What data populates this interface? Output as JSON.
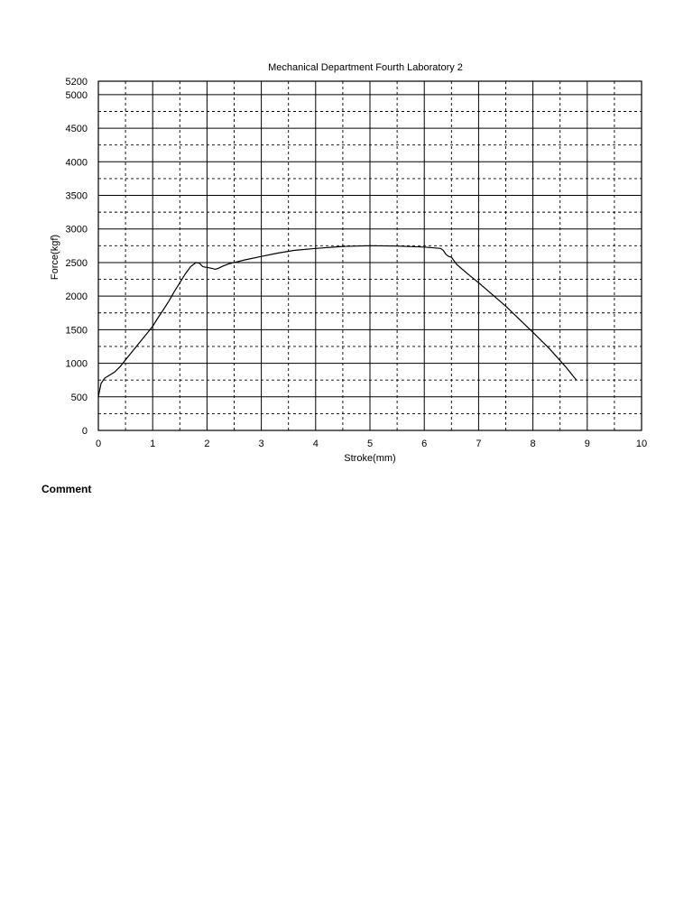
{
  "chart_data": {
    "type": "line",
    "title": "Mechanical Department Fourth Laboratory 2",
    "xlabel": "Stroke(mm)",
    "ylabel": "Force(kgf)",
    "xlim": [
      0,
      10
    ],
    "ylim": [
      0,
      5200
    ],
    "x_ticks": [
      0,
      1,
      2,
      3,
      4,
      5,
      6,
      7,
      8,
      9,
      10
    ],
    "y_ticks": [
      0,
      500,
      1000,
      1500,
      2000,
      2500,
      3000,
      3500,
      4000,
      4500,
      5000,
      5200
    ],
    "x_minor_ticks": [
      0.5,
      1.5,
      2.5,
      3.5,
      4.5,
      5.5,
      6.5,
      7.5,
      8.5,
      9.5
    ],
    "y_minor_ticks": [
      250,
      750,
      1250,
      1750,
      2250,
      2750,
      3250,
      3750,
      4250,
      4750
    ],
    "grid": true,
    "legend": "none",
    "series": [
      {
        "x": [
          0,
          0.05,
          0.12,
          0.2,
          0.3,
          0.4,
          0.5,
          0.6,
          0.7,
          0.8,
          0.9,
          1.0,
          1.1,
          1.2,
          1.3,
          1.4,
          1.5,
          1.6,
          1.7,
          1.8,
          1.86,
          1.92,
          1.97,
          2.0,
          2.05,
          2.1,
          2.15,
          2.2,
          2.3,
          2.4,
          2.5,
          2.7,
          3.0,
          3.3,
          3.6,
          4.0,
          4.5,
          5.0,
          5.5,
          6.0,
          6.3,
          6.35,
          6.4,
          6.45,
          6.5,
          6.6,
          6.8,
          7.0,
          7.5,
          8.0,
          8.3,
          8.6,
          8.8
        ],
        "y": [
          500,
          700,
          780,
          820,
          870,
          950,
          1050,
          1150,
          1250,
          1350,
          1450,
          1550,
          1680,
          1800,
          1930,
          2070,
          2200,
          2330,
          2440,
          2500,
          2490,
          2440,
          2430,
          2430,
          2420,
          2410,
          2400,
          2410,
          2450,
          2480,
          2500,
          2540,
          2590,
          2640,
          2680,
          2710,
          2740,
          2750,
          2745,
          2730,
          2710,
          2680,
          2620,
          2590,
          2580,
          2470,
          2330,
          2200,
          1850,
          1460,
          1220,
          950,
          750
        ]
      }
    ]
  },
  "comment_label": "Comment"
}
